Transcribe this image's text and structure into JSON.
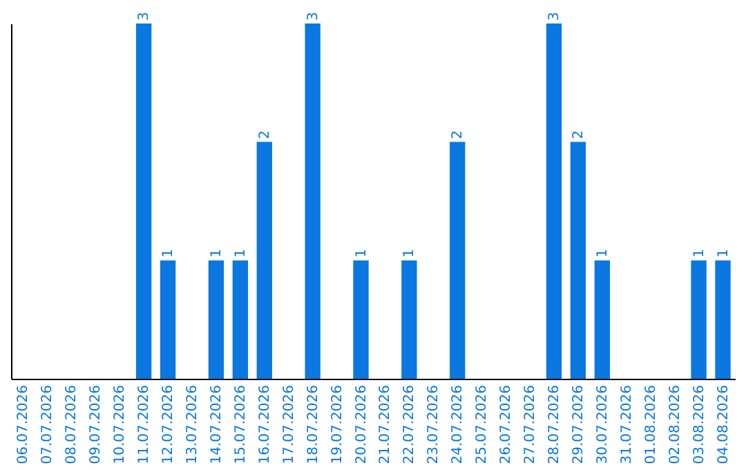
{
  "chart_data": {
    "type": "bar",
    "categories": [
      "06.07.2026",
      "07.07.2026",
      "08.07.2026",
      "09.07.2026",
      "10.07.2026",
      "11.07.2026",
      "12.07.2026",
      "13.07.2026",
      "14.07.2026",
      "15.07.2026",
      "16.07.2026",
      "17.07.2026",
      "18.07.2026",
      "19.07.2026",
      "20.07.2026",
      "21.07.2026",
      "22.07.2026",
      "23.07.2026",
      "24.07.2026",
      "25.07.2026",
      "26.07.2026",
      "27.07.2026",
      "28.07.2026",
      "29.07.2026",
      "30.07.2026",
      "31.07.2026",
      "01.08.2026",
      "02.08.2026",
      "03.08.2026",
      "04.08.2026"
    ],
    "values": [
      0,
      0,
      0,
      0,
      0,
      3,
      1,
      0,
      1,
      1,
      2,
      0,
      3,
      0,
      1,
      0,
      1,
      0,
      2,
      0,
      0,
      0,
      3,
      2,
      1,
      0,
      0,
      0,
      1,
      1
    ],
    "value_labels": [
      null,
      null,
      null,
      null,
      null,
      "3",
      "1",
      null,
      "1",
      "1",
      "2",
      null,
      "3",
      null,
      "1",
      null,
      "1",
      null,
      "2",
      null,
      null,
      null,
      "3",
      "2",
      "1",
      null,
      null,
      null,
      "1",
      "1"
    ],
    "color": "#0a78e0",
    "tick_labels": "x"
  }
}
